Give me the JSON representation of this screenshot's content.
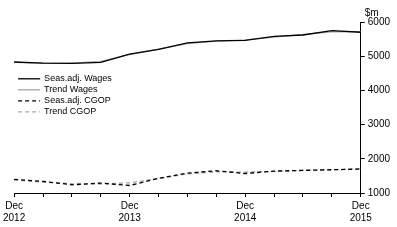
{
  "chart_data": {
    "type": "line",
    "ylabel": "$m",
    "categories": [
      "Dec 2012",
      null,
      null,
      null,
      "Dec 2013",
      null,
      null,
      null,
      "Dec 2014",
      null,
      null,
      null,
      "Dec 2015"
    ],
    "series": [
      {
        "name": "Seas.adj. Wages",
        "color": "#000000",
        "line_style": "solid",
        "values": [
          4830,
          4800,
          4790,
          4820,
          5060,
          5200,
          5390,
          5450,
          5460,
          5580,
          5620,
          5750,
          5700
        ]
      },
      {
        "name": "Trend Wages",
        "color": "#a6a6a6",
        "line_style": "solid",
        "values": [
          4820,
          4800,
          4800,
          4850,
          5050,
          5210,
          5370,
          5440,
          5480,
          5560,
          5640,
          5710,
          5720
        ]
      },
      {
        "name": "Seas.adj. CGOP",
        "color": "#000000",
        "line_style": "dashed",
        "values": [
          1400,
          1340,
          1240,
          1290,
          1220,
          1430,
          1580,
          1650,
          1570,
          1640,
          1660,
          1680,
          1700
        ]
      },
      {
        "name": "Trend CGOP",
        "color": "#a6a6a6",
        "line_style": "dashed",
        "values": [
          1380,
          1320,
          1270,
          1260,
          1300,
          1420,
          1560,
          1620,
          1610,
          1630,
          1660,
          1680,
          1710
        ]
      }
    ],
    "ylim": [
      1000,
      6000
    ],
    "yticks": [
      1000,
      2000,
      3000,
      4000,
      5000,
      6000
    ],
    "grid": false,
    "legend": "top-left"
  }
}
